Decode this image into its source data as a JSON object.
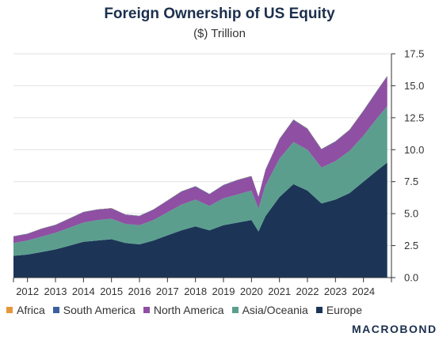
{
  "chart_data": {
    "type": "area",
    "stacked": true,
    "title": "Foreign Ownership of US Equity",
    "subtitle": "($) Trillion",
    "xlabel": "",
    "ylabel": "",
    "ylim": [
      0,
      17.5
    ],
    "yticks": [
      "0.0",
      "2.5",
      "5.0",
      "7.5",
      "10.0",
      "12.5",
      "15.0",
      "17.5"
    ],
    "yaxis_position": "right",
    "grid": true,
    "legend_position": "bottom-left",
    "xlim": [
      2011.5,
      2025.0
    ],
    "xticks": [
      "2012",
      "2013",
      "2014",
      "2015",
      "2016",
      "2017",
      "2018",
      "2019",
      "2020",
      "2021",
      "2022",
      "2023",
      "2024"
    ],
    "x": [
      2011.5,
      2012.0,
      2012.5,
      2013.0,
      2013.5,
      2014.0,
      2014.5,
      2015.0,
      2015.5,
      2016.0,
      2016.5,
      2017.0,
      2017.5,
      2018.0,
      2018.5,
      2019.0,
      2019.5,
      2020.0,
      2020.25,
      2020.5,
      2021.0,
      2021.5,
      2022.0,
      2022.5,
      2023.0,
      2023.5,
      2024.0,
      2024.5,
      2024.85
    ],
    "series": [
      {
        "name": "Europe",
        "color": "#1c3557",
        "values": [
          1.7,
          1.8,
          2.0,
          2.2,
          2.5,
          2.8,
          2.9,
          3.0,
          2.7,
          2.6,
          2.9,
          3.3,
          3.7,
          4.0,
          3.7,
          4.1,
          4.3,
          4.5,
          3.6,
          4.8,
          6.3,
          7.3,
          6.8,
          5.8,
          6.1,
          6.6,
          7.5,
          8.4,
          9.0
        ]
      },
      {
        "name": "Asia/Oceania",
        "color": "#5b9e8e",
        "values": [
          1.0,
          1.1,
          1.2,
          1.3,
          1.4,
          1.5,
          1.6,
          1.6,
          1.5,
          1.5,
          1.6,
          1.8,
          2.0,
          2.1,
          1.9,
          2.1,
          2.2,
          2.3,
          1.8,
          2.4,
          3.0,
          3.3,
          3.2,
          2.8,
          3.0,
          3.3,
          3.6,
          4.1,
          4.4
        ]
      },
      {
        "name": "North America",
        "color": "#8f4fa3",
        "values": [
          0.5,
          0.5,
          0.6,
          0.6,
          0.7,
          0.8,
          0.8,
          0.8,
          0.7,
          0.7,
          0.8,
          0.9,
          1.0,
          1.0,
          0.9,
          1.0,
          1.1,
          1.1,
          0.9,
          1.2,
          1.5,
          1.7,
          1.6,
          1.4,
          1.5,
          1.6,
          1.9,
          2.1,
          2.3
        ]
      },
      {
        "name": "South America",
        "color": "#3b5f9e",
        "values": [
          0.03,
          0.03,
          0.03,
          0.03,
          0.03,
          0.03,
          0.03,
          0.03,
          0.03,
          0.03,
          0.03,
          0.03,
          0.04,
          0.04,
          0.04,
          0.04,
          0.04,
          0.04,
          0.03,
          0.04,
          0.05,
          0.05,
          0.05,
          0.05,
          0.05,
          0.05,
          0.06,
          0.06,
          0.06
        ]
      },
      {
        "name": "Africa",
        "color": "#e8963c",
        "values": [
          0.01,
          0.01,
          0.01,
          0.01,
          0.01,
          0.01,
          0.01,
          0.01,
          0.01,
          0.01,
          0.01,
          0.01,
          0.01,
          0.01,
          0.01,
          0.01,
          0.01,
          0.01,
          0.01,
          0.01,
          0.02,
          0.02,
          0.02,
          0.02,
          0.02,
          0.02,
          0.02,
          0.02,
          0.02
        ]
      }
    ],
    "legend": [
      "Africa",
      "South America",
      "North America",
      "Asia/Oceania",
      "Europe"
    ]
  },
  "branding": {
    "logo": "MACROBOND"
  }
}
